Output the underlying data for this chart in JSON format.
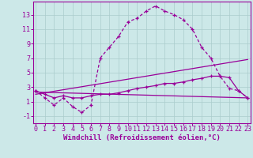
{
  "background_color": "#cce8e8",
  "grid_color": "#aacccc",
  "line_color": "#990099",
  "xlabel": "Windchill (Refroidissement éolien,°C)",
  "xlabel_fontsize": 6.5,
  "tick_fontsize": 6.0,
  "yticks": [
    -1,
    1,
    3,
    5,
    7,
    9,
    11,
    13
  ],
  "xticks": [
    0,
    1,
    2,
    3,
    4,
    5,
    6,
    7,
    8,
    9,
    10,
    11,
    12,
    13,
    14,
    15,
    16,
    17,
    18,
    19,
    20,
    21,
    22,
    23
  ],
  "xlim": [
    -0.3,
    23.3
  ],
  "ylim": [
    -2.0,
    14.8
  ],
  "curve_main_x": [
    0,
    1,
    2,
    3,
    4,
    5,
    6,
    7,
    8,
    9,
    10,
    11,
    12,
    13,
    14,
    15,
    16,
    17,
    18,
    19,
    20,
    21,
    22,
    23
  ],
  "curve_main_y": [
    2.5,
    1.5,
    0.5,
    1.5,
    0.3,
    -0.5,
    0.5,
    7.0,
    8.5,
    10.0,
    12.0,
    12.5,
    13.5,
    14.2,
    13.5,
    13.0,
    12.3,
    11.0,
    8.5,
    7.0,
    4.5,
    2.8,
    2.5,
    1.5
  ],
  "curve_smooth_x": [
    0,
    1,
    2,
    3,
    4,
    5,
    6,
    7,
    8,
    9,
    10,
    11,
    12,
    13,
    14,
    15,
    16,
    17,
    18,
    19,
    20,
    21,
    22,
    23
  ],
  "curve_smooth_y": [
    2.5,
    2.0,
    1.5,
    1.8,
    1.5,
    1.5,
    1.8,
    2.0,
    2.0,
    2.2,
    2.5,
    2.8,
    3.0,
    3.2,
    3.5,
    3.5,
    3.7,
    4.0,
    4.2,
    4.5,
    4.5,
    4.3,
    2.5,
    1.5
  ],
  "curve_line1_x": [
    0,
    23
  ],
  "curve_line1_y": [
    2.0,
    6.8
  ],
  "curve_line2_x": [
    0,
    23
  ],
  "curve_line2_y": [
    2.3,
    1.5
  ]
}
